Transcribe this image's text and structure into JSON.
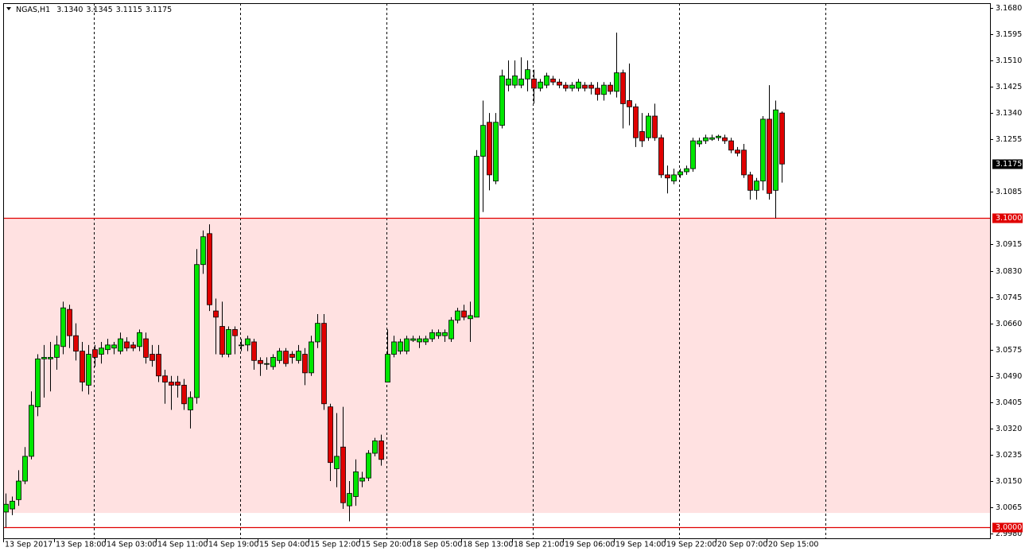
{
  "chart_data": {
    "type": "candlestick",
    "header": {
      "symbol": "NGAS,H1",
      "ohlc": [
        "3.1340",
        "3.1345",
        "3.1115",
        "3.1175"
      ]
    },
    "categories": [
      "13 Sep 2017",
      null,
      null,
      null,
      null,
      null,
      null,
      null,
      "13 Sep 18:00",
      null,
      null,
      null,
      null,
      null,
      null,
      null,
      "14 Sep 03:00",
      null,
      null,
      null,
      null,
      null,
      null,
      null,
      "14 Sep 11:00",
      null,
      null,
      null,
      null,
      null,
      null,
      null,
      "14 Sep 19:00",
      null,
      null,
      null,
      null,
      null,
      null,
      null,
      "15 Sep 04:00",
      null,
      null,
      null,
      null,
      null,
      null,
      null,
      "15 Sep 12:00",
      null,
      null,
      null,
      null,
      null,
      null,
      null,
      "15 Sep 20:00",
      null,
      null,
      null,
      null,
      null,
      null,
      null,
      "18 Sep 05:00",
      null,
      null,
      null,
      null,
      null,
      null,
      null,
      "18 Sep 13:00",
      null,
      null,
      null,
      null,
      null,
      null,
      null,
      "18 Sep 21:00",
      null,
      null,
      null,
      null,
      null,
      null,
      null,
      "19 Sep 06:00",
      null,
      null,
      null,
      null,
      null,
      null,
      null,
      "19 Sep 14:00",
      null,
      null,
      null,
      null,
      null,
      null,
      null,
      "19 Sep 22:00",
      null,
      null,
      null,
      null,
      null,
      null,
      null,
      "20 Sep 07:00",
      null,
      null,
      null,
      null,
      null,
      null,
      null,
      "20 Sep 15:00",
      null,
      null
    ],
    "open": [
      3.005,
      3.006,
      3.009,
      3.015,
      3.023,
      3.039,
      3.0545,
      3.0545,
      3.055,
      3.0585,
      3.0705,
      3.062,
      3.057,
      3.046,
      3.0575,
      3.056,
      3.0575,
      3.058,
      3.057,
      3.06,
      3.059,
      3.0585,
      3.061,
      3.056,
      3.056,
      3.049,
      3.047,
      3.047,
      3.046,
      3.038,
      3.042,
      3.085,
      3.095,
      3.07,
      3.065,
      3.056,
      3.064,
      3.059,
      3.059,
      3.06,
      3.054,
      3.053,
      3.052,
      3.054,
      3.057,
      3.056,
      3.054,
      3.056,
      3.05,
      3.06,
      3.066,
      3.039,
      3.019,
      3.026,
      3.007,
      3.01,
      3.015,
      3.016,
      3.024,
      3.028,
      3.047,
      3.056,
      3.057,
      3.057,
      3.0605,
      3.06,
      3.06,
      3.061,
      3.062,
      3.062,
      3.061,
      3.067,
      3.07,
      3.0675,
      3.068,
      3.12,
      3.131,
      3.112,
      3.13,
      3.143,
      3.143,
      3.143,
      3.145,
      3.145,
      3.142,
      3.143,
      3.145,
      3.144,
      3.143,
      3.142,
      3.142,
      3.143,
      3.143,
      3.142,
      3.14,
      3.143,
      3.141,
      3.147,
      3.138,
      3.136,
      3.128,
      3.126,
      3.133,
      3.126,
      3.114,
      3.112,
      3.114,
      3.115,
      3.116,
      3.124,
      3.125,
      3.1255,
      3.126,
      3.126,
      3.125,
      3.122,
      3.122,
      3.114,
      3.109,
      3.112,
      3.132,
      3.109,
      3.134
    ],
    "high": [
      3.011,
      3.01,
      3.0185,
      3.026,
      3.044,
      3.056,
      3.059,
      3.06,
      3.062,
      3.073,
      3.072,
      3.066,
      3.06,
      3.059,
      3.059,
      3.06,
      3.061,
      3.06,
      3.063,
      3.0615,
      3.06,
      3.064,
      3.063,
      3.059,
      3.059,
      3.051,
      3.049,
      3.049,
      3.048,
      3.044,
      3.09,
      3.096,
      3.098,
      3.074,
      3.073,
      3.065,
      3.065,
      3.061,
      3.062,
      3.061,
      3.055,
      3.055,
      3.056,
      3.058,
      3.058,
      3.057,
      3.059,
      3.058,
      3.062,
      3.069,
      3.069,
      3.04,
      3.037,
      3.039,
      3.015,
      3.022,
      3.018,
      3.025,
      3.029,
      3.03,
      3.064,
      3.062,
      3.061,
      3.062,
      3.062,
      3.062,
      3.062,
      3.064,
      3.064,
      3.064,
      3.068,
      3.071,
      3.072,
      3.073,
      3.122,
      3.138,
      3.134,
      3.134,
      3.148,
      3.151,
      3.151,
      3.152,
      3.151,
      3.148,
      3.145,
      3.147,
      3.146,
      3.145,
      3.144,
      3.144,
      3.145,
      3.144,
      3.144,
      3.144,
      3.144,
      3.144,
      3.16,
      3.148,
      3.15,
      3.137,
      3.134,
      3.134,
      3.137,
      3.127,
      3.117,
      3.116,
      3.116,
      3.117,
      3.126,
      3.126,
      3.127,
      3.127,
      3.127,
      3.127,
      3.126,
      3.123,
      3.124,
      3.115,
      3.113,
      3.133,
      3.143,
      3.138,
      3.1345
    ],
    "low": [
      3.0,
      3.004,
      3.007,
      3.014,
      3.022,
      3.036,
      3.042,
      3.044,
      3.051,
      3.056,
      3.058,
      3.054,
      3.044,
      3.043,
      3.052,
      3.053,
      3.056,
      3.056,
      3.056,
      3.057,
      3.057,
      3.057,
      3.053,
      3.052,
      3.047,
      3.04,
      3.038,
      3.042,
      3.038,
      3.032,
      3.04,
      3.082,
      3.07,
      3.056,
      3.055,
      3.055,
      3.056,
      3.057,
      3.057,
      3.051,
      3.049,
      3.051,
      3.051,
      3.053,
      3.052,
      3.053,
      3.053,
      3.046,
      3.049,
      3.058,
      3.038,
      3.015,
      3.013,
      3.006,
      3.002,
      3.007,
      3.013,
      3.015,
      3.023,
      3.02,
      3.047,
      3.055,
      3.056,
      3.056,
      3.06,
      3.058,
      3.059,
      3.06,
      3.061,
      3.06,
      3.06,
      3.066,
      3.067,
      3.06,
      3.068,
      3.102,
      3.109,
      3.111,
      3.129,
      3.141,
      3.142,
      3.142,
      3.141,
      3.137,
      3.141,
      3.142,
      3.143,
      3.142,
      3.141,
      3.141,
      3.141,
      3.141,
      3.14,
      3.138,
      3.138,
      3.14,
      3.139,
      3.129,
      3.13,
      3.123,
      3.123,
      3.125,
      3.125,
      3.113,
      3.108,
      3.111,
      3.113,
      3.114,
      3.115,
      3.123,
      3.124,
      3.125,
      3.125,
      3.124,
      3.121,
      3.12,
      3.113,
      3.106,
      3.106,
      3.109,
      3.106,
      3.1,
      3.1115
    ],
    "close": [
      3.0075,
      3.0085,
      3.015,
      3.023,
      3.0395,
      3.0545,
      3.055,
      3.055,
      3.059,
      3.071,
      3.062,
      3.057,
      3.047,
      3.056,
      3.055,
      3.058,
      3.059,
      3.059,
      3.061,
      3.058,
      3.058,
      3.063,
      3.055,
      3.054,
      3.049,
      3.047,
      3.046,
      3.046,
      3.04,
      3.042,
      3.085,
      3.094,
      3.072,
      3.068,
      3.056,
      3.064,
      3.062,
      3.059,
      3.061,
      3.054,
      3.053,
      3.053,
      3.055,
      3.057,
      3.053,
      3.055,
      3.057,
      3.05,
      3.06,
      3.066,
      3.04,
      3.021,
      3.023,
      3.008,
      3.011,
      3.018,
      3.016,
      3.024,
      3.028,
      3.022,
      3.056,
      3.06,
      3.06,
      3.061,
      3.061,
      3.061,
      3.061,
      3.063,
      3.063,
      3.063,
      3.067,
      3.07,
      3.068,
      3.0685,
      3.12,
      3.13,
      3.114,
      3.131,
      3.146,
      3.145,
      3.146,
      3.145,
      3.148,
      3.142,
      3.144,
      3.146,
      3.144,
      3.143,
      3.142,
      3.143,
      3.144,
      3.142,
      3.142,
      3.14,
      3.143,
      3.141,
      3.147,
      3.137,
      3.136,
      3.126,
      3.125,
      3.133,
      3.126,
      3.114,
      3.113,
      3.114,
      3.115,
      3.116,
      3.125,
      3.125,
      3.126,
      3.126,
      3.1265,
      3.125,
      3.122,
      3.121,
      3.114,
      3.109,
      3.112,
      3.132,
      3.108,
      3.135,
      3.1175
    ],
    "up_color": "#00e600",
    "down_color": "#e00000",
    "ylim": [
      2.9965,
      3.1695
    ],
    "yticks": [
      {
        "value": 3.168,
        "label": "3.1680"
      },
      {
        "value": 3.1595,
        "label": "3.1595"
      },
      {
        "value": 3.151,
        "label": "3.1510"
      },
      {
        "value": 3.1425,
        "label": "3.1425"
      },
      {
        "value": 3.134,
        "label": "3.1340"
      },
      {
        "value": 3.1255,
        "label": "3.1255"
      },
      {
        "value": 3.1085,
        "label": "3.1085"
      },
      {
        "value": 3.0915,
        "label": "3.0915"
      },
      {
        "value": 3.083,
        "label": "3.0830"
      },
      {
        "value": 3.0745,
        "label": "3.0745"
      },
      {
        "value": 3.066,
        "label": "3.0660"
      },
      {
        "value": 3.0575,
        "label": "3.0575"
      },
      {
        "value": 3.049,
        "label": "3.0490"
      },
      {
        "value": 3.0405,
        "label": "3.0405"
      },
      {
        "value": 3.032,
        "label": "3.0320"
      },
      {
        "value": 3.0235,
        "label": "3.0235"
      },
      {
        "value": 3.015,
        "label": "3.0150"
      },
      {
        "value": 3.0065,
        "label": "3.0065"
      },
      {
        "value": 2.998,
        "label": "2.9980"
      }
    ],
    "zone": {
      "from": 3.1,
      "to": 3.0047,
      "color": "#ffe1e1"
    },
    "hlines": [
      {
        "value": 3.1,
        "label": "3.1000",
        "color": "#e00000"
      },
      {
        "value": 3.0,
        "label": "3.0000",
        "color": "#e00000"
      }
    ],
    "current_price": {
      "value": 3.1175,
      "label": "3.1175"
    },
    "separators": [
      14,
      37,
      60,
      83,
      106,
      129
    ]
  }
}
